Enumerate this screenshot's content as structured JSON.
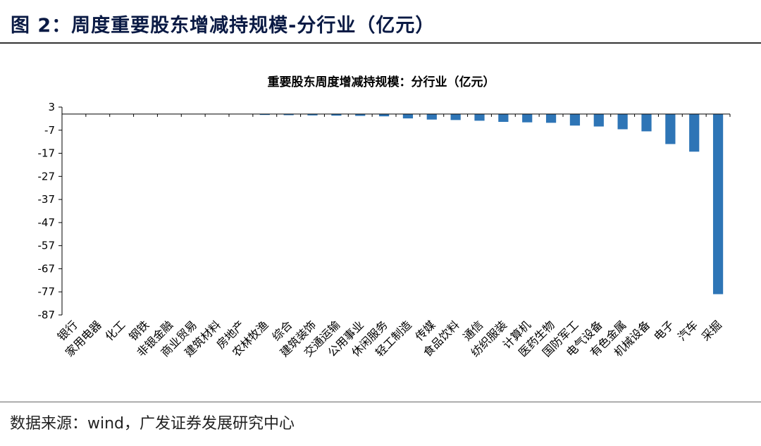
{
  "figure_title": "图 2：周度重要股东增减持规模-分行业（亿元）",
  "source_note": "数据来源：wind，广发证券发展研究中心",
  "colors": {
    "bar": "#2e75b6",
    "title": "#0a1a44"
  },
  "chart_data": {
    "type": "bar",
    "title": "重要股东周度增减持规模：分行业（亿元）",
    "ylim": [
      -87,
      3
    ],
    "yticks": [
      3,
      -7,
      -17,
      -27,
      -37,
      -47,
      -57,
      -67,
      -77,
      -87
    ],
    "grid": false,
    "categories": [
      "银行",
      "家用电器",
      "化工",
      "钢铁",
      "非银金融",
      "商业贸易",
      "建筑材料",
      "房地产",
      "农林牧渔",
      "综合",
      "建筑装饰",
      "交通运输",
      "公用事业",
      "休闲服务",
      "轻工制造",
      "传媒",
      "食品饮料",
      "通信",
      "纺织服装",
      "计算机",
      "医药生物",
      "国防军工",
      "电气设备",
      "有色金属",
      "机械设备",
      "电子",
      "汽车",
      "采掘"
    ],
    "values": [
      0,
      0,
      0,
      0,
      0,
      0,
      0,
      0,
      -0.4,
      -0.5,
      -0.6,
      -0.7,
      -0.8,
      -1.0,
      -1.9,
      -2.4,
      -2.6,
      -2.9,
      -3.4,
      -3.6,
      -3.8,
      -5.0,
      -5.4,
      -6.6,
      -7.5,
      -13.0,
      -16.3,
      -78.0
    ]
  }
}
